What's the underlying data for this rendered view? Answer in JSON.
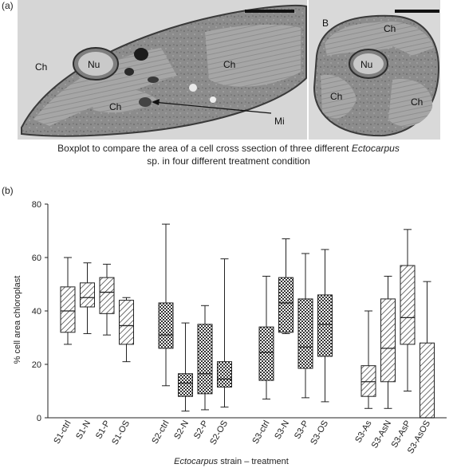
{
  "panel_a": {
    "label": "(a)",
    "labels": {
      "ch": "Ch",
      "nu": "Nu",
      "mi": "Mi",
      "b": "B"
    },
    "caption_line1_pre": "Boxplot to compare the area of a cell cross ssection of three different",
    "caption_genus": "Ectocarpus",
    "caption_line2": "sp. in four different treatment condition"
  },
  "panel_b": {
    "label": "(b)"
  },
  "colors": {
    "stroke": "#222222",
    "micrograph_dark": "#6e6e6e",
    "micrograph_mid": "#9a9a9a",
    "micrograph_light": "#c2c2c2"
  },
  "chart_data": {
    "type": "boxplot",
    "ylabel": "% cell area chloroplast",
    "xlabel_italic": "Ectocarpus",
    "xlabel_rest": " strain – treatment",
    "ylim": [
      0,
      80
    ],
    "yticks": [
      0,
      20,
      40,
      60,
      80
    ],
    "groups": [
      {
        "name": "S1",
        "boxes": [
          {
            "label": "S1-ctrl",
            "min": 27.5,
            "q1": 32,
            "median": 40,
            "q3": 49,
            "max": 60,
            "pattern": "hatch"
          },
          {
            "label": "S1-N",
            "min": 31.5,
            "q1": 41.5,
            "median": 45,
            "q3": 50.5,
            "max": 58,
            "pattern": "hatch"
          },
          {
            "label": "S1-P",
            "min": 31,
            "q1": 39,
            "median": 47,
            "q3": 52.5,
            "max": 57.5,
            "pattern": "hatch"
          },
          {
            "label": "S1-OS",
            "min": 21,
            "q1": 27.5,
            "median": 34.5,
            "q3": 44,
            "max": 45,
            "pattern": "hatch"
          }
        ]
      },
      {
        "name": "S2",
        "boxes": [
          {
            "label": "S2-ctrl",
            "min": 12,
            "q1": 26,
            "median": 31,
            "q3": 43,
            "max": 72.5,
            "pattern": "cross"
          },
          {
            "label": "S2-N",
            "min": 2.5,
            "q1": 8,
            "median": 13,
            "q3": 16.5,
            "max": 35.5,
            "pattern": "cross"
          },
          {
            "label": "S2-P",
            "min": 3,
            "q1": 9,
            "median": 16.5,
            "q3": 35,
            "max": 42,
            "pattern": "cross"
          },
          {
            "label": "S2-OS",
            "min": 4,
            "q1": 11.5,
            "median": 14.5,
            "q3": 21,
            "max": 59.5,
            "pattern": "cross"
          }
        ]
      },
      {
        "name": "S3",
        "boxes": [
          {
            "label": "S3-ctrl",
            "min": 7,
            "q1": 14,
            "median": 24.5,
            "q3": 34,
            "max": 53,
            "pattern": "cross"
          },
          {
            "label": "S3-N",
            "min": 31.5,
            "q1": 32,
            "median": 43,
            "q3": 52.5,
            "max": 67,
            "pattern": "cross"
          },
          {
            "label": "S3-P",
            "min": 7.5,
            "q1": 18.5,
            "median": 26.5,
            "q3": 44.5,
            "max": 61.5,
            "pattern": "cross"
          },
          {
            "label": "S3-OS",
            "min": 6,
            "q1": 23,
            "median": 35,
            "q3": 46,
            "max": 63,
            "pattern": "cross"
          }
        ]
      },
      {
        "name": "S3-As",
        "boxes": [
          {
            "label": "S3-As",
            "min": 3.5,
            "q1": 8,
            "median": 13.5,
            "q3": 19.5,
            "max": 40,
            "pattern": "hatch"
          },
          {
            "label": "S3-AsN",
            "min": 3.5,
            "q1": 13.5,
            "median": 26,
            "q3": 44.5,
            "max": 53,
            "pattern": "hatch"
          },
          {
            "label": "S3-AsP",
            "min": 10,
            "q1": 27.5,
            "median": 37.5,
            "q3": 57,
            "max": 70.5,
            "pattern": "hatch"
          },
          {
            "label": "S3-AsOS",
            "min": 0,
            "q1": 0,
            "median": 0,
            "q3": 28,
            "max": 51,
            "pattern": "hatch"
          }
        ]
      }
    ]
  }
}
